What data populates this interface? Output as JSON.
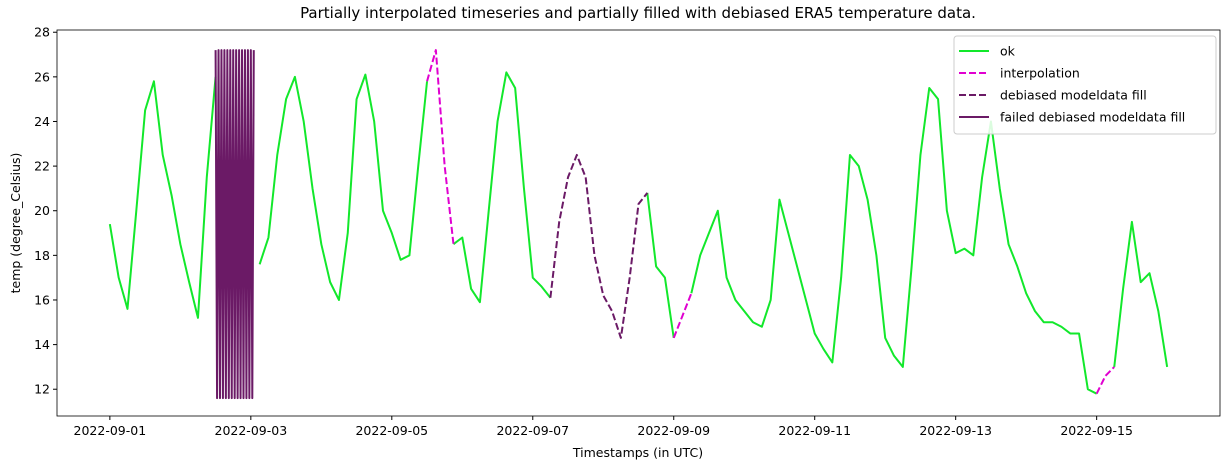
{
  "chart_data": {
    "type": "line",
    "title": "Partially interpolated timeseries and partially filled with debiased ERA5 temperature data.",
    "xlabel": "Timestamps (in UTC)",
    "ylabel": "temp (degree_Celsius)",
    "ylim": [
      10.8,
      28.1
    ],
    "yticks": [
      12,
      14,
      16,
      18,
      20,
      22,
      24,
      26,
      28
    ],
    "xticks": [
      "2022-09-01",
      "2022-09-03",
      "2022-09-05",
      "2022-09-07",
      "2022-09-09",
      "2022-09-11",
      "2022-09-13",
      "2022-09-15"
    ],
    "legend": "upper right",
    "x": [
      "2022-09-01 00:00",
      "2022-09-01 03:00",
      "2022-09-01 06:00",
      "2022-09-01 09:00",
      "2022-09-01 12:00",
      "2022-09-01 15:00",
      "2022-09-01 18:00",
      "2022-09-01 21:00",
      "2022-09-02 00:00",
      "2022-09-02 03:00",
      "2022-09-02 06:00",
      "2022-09-02 09:00",
      "2022-09-02 12:00",
      "2022-09-02 15:00",
      "2022-09-02 18:00",
      "2022-09-02 21:00",
      "2022-09-03 00:00",
      "2022-09-03 03:00",
      "2022-09-03 06:00",
      "2022-09-03 09:00",
      "2022-09-03 12:00",
      "2022-09-03 15:00",
      "2022-09-03 18:00",
      "2022-09-03 21:00",
      "2022-09-04 00:00",
      "2022-09-04 03:00",
      "2022-09-04 06:00",
      "2022-09-04 09:00",
      "2022-09-04 12:00",
      "2022-09-04 15:00",
      "2022-09-04 18:00",
      "2022-09-04 21:00",
      "2022-09-05 00:00",
      "2022-09-05 03:00",
      "2022-09-05 06:00",
      "2022-09-05 09:00",
      "2022-09-05 12:00",
      "2022-09-05 15:00",
      "2022-09-05 18:00",
      "2022-09-05 21:00",
      "2022-09-06 00:00",
      "2022-09-06 03:00",
      "2022-09-06 06:00",
      "2022-09-06 09:00",
      "2022-09-06 12:00",
      "2022-09-06 15:00",
      "2022-09-06 18:00",
      "2022-09-06 21:00",
      "2022-09-07 00:00",
      "2022-09-07 03:00",
      "2022-09-07 06:00",
      "2022-09-07 09:00",
      "2022-09-07 12:00",
      "2022-09-07 15:00",
      "2022-09-07 18:00",
      "2022-09-07 21:00",
      "2022-09-08 00:00",
      "2022-09-08 03:00",
      "2022-09-08 06:00",
      "2022-09-08 09:00",
      "2022-09-08 12:00",
      "2022-09-08 15:00",
      "2022-09-08 18:00",
      "2022-09-08 21:00",
      "2022-09-09 00:00",
      "2022-09-09 03:00",
      "2022-09-09 06:00",
      "2022-09-09 09:00",
      "2022-09-09 12:00",
      "2022-09-09 15:00",
      "2022-09-09 18:00",
      "2022-09-09 21:00",
      "2022-09-10 00:00",
      "2022-09-10 03:00",
      "2022-09-10 06:00",
      "2022-09-10 09:00",
      "2022-09-10 12:00",
      "2022-09-10 15:00",
      "2022-09-10 18:00",
      "2022-09-10 21:00",
      "2022-09-11 00:00",
      "2022-09-11 03:00",
      "2022-09-11 06:00",
      "2022-09-11 09:00",
      "2022-09-11 12:00",
      "2022-09-11 15:00",
      "2022-09-11 18:00",
      "2022-09-11 21:00",
      "2022-09-12 00:00",
      "2022-09-12 03:00",
      "2022-09-12 06:00",
      "2022-09-12 09:00",
      "2022-09-12 12:00",
      "2022-09-12 15:00",
      "2022-09-12 18:00",
      "2022-09-12 21:00",
      "2022-09-13 00:00",
      "2022-09-13 03:00",
      "2022-09-13 06:00",
      "2022-09-13 09:00",
      "2022-09-13 12:00",
      "2022-09-13 15:00",
      "2022-09-13 18:00",
      "2022-09-13 21:00",
      "2022-09-14 00:00",
      "2022-09-14 03:00",
      "2022-09-14 06:00",
      "2022-09-14 09:00",
      "2022-09-14 12:00",
      "2022-09-14 15:00",
      "2022-09-14 18:00",
      "2022-09-14 21:00",
      "2022-09-15 00:00",
      "2022-09-15 03:00",
      "2022-09-15 06:00",
      "2022-09-15 09:00",
      "2022-09-15 12:00",
      "2022-09-15 15:00",
      "2022-09-15 18:00",
      "2022-09-15 21:00",
      "2022-09-16 00:00"
    ],
    "series": [
      {
        "name": "ok",
        "color": "#12e82b",
        "dashed": false,
        "values": [
          19.4,
          17.0,
          15.6,
          20.0,
          24.5,
          25.8,
          22.5,
          20.7,
          18.5,
          16.8,
          15.2,
          21.5,
          26.0,
          null,
          null,
          null,
          null,
          17.6,
          18.8,
          22.5,
          25.0,
          26.0,
          24.0,
          21.0,
          18.5,
          16.8,
          16.0,
          19.0,
          25.0,
          26.1,
          24.0,
          20.0,
          19.0,
          17.8,
          18.0,
          22.0,
          25.8,
          null,
          null,
          18.5,
          18.8,
          16.5,
          15.9,
          20.0,
          24.0,
          26.2,
          25.5,
          21.0,
          17.0,
          16.6,
          16.1,
          null,
          null,
          null,
          null,
          null,
          null,
          null,
          null,
          null,
          null,
          20.8,
          17.5,
          17.0,
          14.3,
          null,
          16.3,
          18.0,
          19.0,
          20.0,
          17.0,
          16.0,
          15.5,
          15.0,
          14.8,
          16.0,
          20.5,
          19.0,
          17.5,
          16.0,
          14.5,
          13.8,
          13.2,
          17.0,
          22.5,
          22.0,
          20.5,
          18.0,
          14.3,
          13.5,
          13.0,
          17.5,
          22.5,
          25.5,
          25.0,
          20.0,
          18.1,
          18.3,
          18.0,
          21.5,
          24.0,
          21.0,
          18.5,
          17.5,
          16.3,
          15.5,
          15.0,
          15.0,
          14.8,
          14.5,
          14.5,
          12.0,
          11.8,
          null,
          13.0,
          16.5,
          19.5,
          16.8,
          17.2,
          15.5,
          13.0
        ]
      },
      {
        "name": "interpolation",
        "color": "#e000d0",
        "dashed": true,
        "values": [
          null,
          null,
          null,
          null,
          null,
          null,
          null,
          null,
          null,
          null,
          null,
          null,
          null,
          null,
          null,
          null,
          null,
          null,
          null,
          null,
          null,
          null,
          null,
          null,
          null,
          null,
          null,
          null,
          null,
          null,
          null,
          null,
          null,
          null,
          null,
          null,
          25.8,
          27.2,
          22.0,
          18.5,
          null,
          null,
          null,
          null,
          null,
          null,
          null,
          null,
          null,
          null,
          null,
          null,
          null,
          null,
          null,
          null,
          null,
          null,
          null,
          null,
          null,
          null,
          null,
          null,
          14.3,
          15.3,
          16.3,
          null,
          null,
          null,
          null,
          null,
          null,
          null,
          null,
          null,
          null,
          null,
          null,
          null,
          null,
          null,
          null,
          null,
          null,
          null,
          null,
          null,
          null,
          null,
          null,
          null,
          null,
          null,
          null,
          null,
          null,
          null,
          null,
          null,
          null,
          null,
          null,
          null,
          null,
          null,
          null,
          null,
          null,
          null,
          null,
          null,
          11.8,
          12.6,
          13.0,
          null,
          null,
          null,
          null,
          null,
          null
        ]
      },
      {
        "name": "debiased modeldata fill",
        "color": "#6b1a66",
        "dashed": true,
        "values": [
          null,
          null,
          null,
          null,
          null,
          null,
          null,
          null,
          null,
          null,
          null,
          null,
          null,
          null,
          null,
          null,
          null,
          null,
          null,
          null,
          null,
          null,
          null,
          null,
          null,
          null,
          null,
          null,
          null,
          null,
          null,
          null,
          null,
          null,
          null,
          null,
          null,
          null,
          null,
          null,
          null,
          null,
          null,
          null,
          null,
          null,
          null,
          null,
          null,
          null,
          16.1,
          19.5,
          21.5,
          22.5,
          21.5,
          18.0,
          16.2,
          15.5,
          14.3,
          17.0,
          20.3,
          20.8,
          null,
          null,
          null,
          null,
          null,
          null,
          null,
          null,
          null,
          null,
          null,
          null,
          null,
          null,
          null,
          null,
          null,
          null,
          null,
          null,
          null,
          null,
          null,
          null,
          null,
          null,
          null,
          null,
          null,
          null,
          null,
          null,
          null,
          null,
          null,
          null,
          null,
          null,
          null,
          null,
          null,
          null,
          null,
          null,
          null,
          null,
          null,
          null,
          null,
          null,
          null,
          null,
          null,
          null,
          null,
          null,
          null,
          null,
          null
        ]
      },
      {
        "name": "failed debiased modeldata fill",
        "color": "#6b1a66",
        "dashed": false,
        "x": [
          "2022-09-02 12:00",
          "2022-09-02 12:30",
          "2022-09-02 13:00",
          "2022-09-02 13:30",
          "2022-09-02 14:00",
          "2022-09-02 14:30",
          "2022-09-02 15:00",
          "2022-09-02 15:30",
          "2022-09-02 16:00",
          "2022-09-02 16:30",
          "2022-09-02 17:00",
          "2022-09-02 17:30",
          "2022-09-02 18:00",
          "2022-09-02 18:30",
          "2022-09-02 19:00",
          "2022-09-02 19:30",
          "2022-09-02 20:00",
          "2022-09-02 20:30",
          "2022-09-02 21:00",
          "2022-09-02 21:30",
          "2022-09-02 22:00",
          "2022-09-02 22:30",
          "2022-09-02 23:00",
          "2022-09-02 23:30",
          "2022-09-03 00:00",
          "2022-09-03 00:30",
          "2022-09-03 01:00"
        ],
        "values": [
          27.2,
          11.6,
          27.2,
          11.6,
          27.2,
          11.6,
          27.2,
          11.6,
          27.2,
          11.6,
          27.2,
          11.6,
          27.2,
          11.6,
          27.2,
          11.6,
          27.2,
          11.6,
          27.2,
          11.6,
          27.2,
          11.6,
          27.2,
          11.6,
          27.2,
          11.6,
          27.2
        ]
      }
    ]
  }
}
